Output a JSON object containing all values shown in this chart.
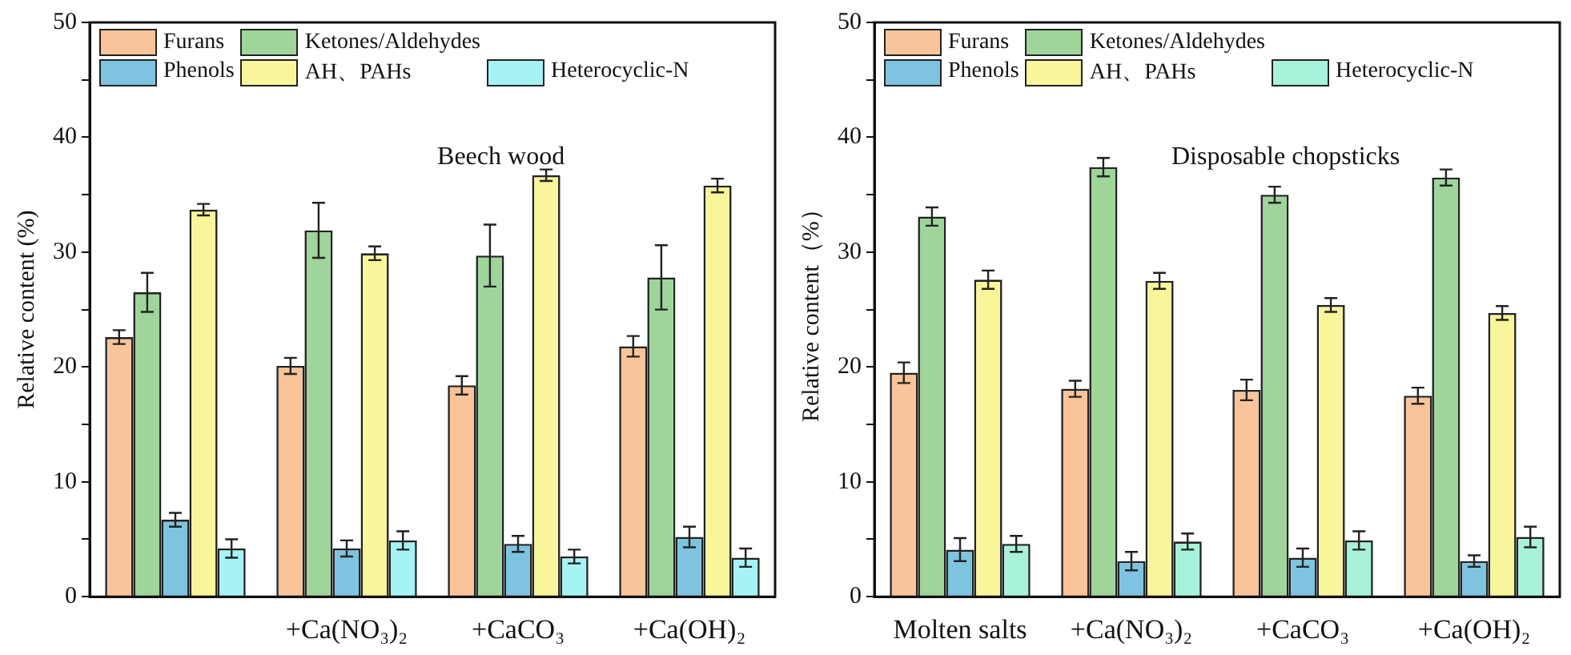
{
  "chart_data": [
    {
      "type": "bar",
      "title": "Beech wood",
      "ylabel": "Relative content (%)",
      "categories": [
        null,
        "+Ca(NO₃)₂",
        "+CaCO₃",
        "+Ca(OH)₂"
      ],
      "ylim": [
        0,
        50
      ],
      "yticks": [
        0,
        {
          "value": 5,
          "label": null
        },
        10,
        {
          "value": 15,
          "label": null
        },
        20,
        {
          "value": 25,
          "label": null
        },
        30,
        {
          "value": 35,
          "label": null
        },
        40,
        {
          "value": 45,
          "label": null
        },
        50
      ],
      "grid": false,
      "legend": "top left",
      "series": [
        {
          "name": "Furans",
          "color": "#f9c49a",
          "values": [
            22.6,
            20.1,
            18.4,
            21.8
          ],
          "errors": [
            0.6,
            0.7,
            0.8,
            0.9
          ]
        },
        {
          "name": "Ketones/Aldehydes",
          "color": "#9fd49b",
          "values": [
            26.5,
            31.9,
            29.7,
            27.8
          ],
          "errors": [
            1.7,
            2.4,
            2.7,
            2.8
          ]
        },
        {
          "name": "Phenols",
          "color": "#7ec4e0",
          "values": [
            6.7,
            4.2,
            4.6,
            5.2
          ],
          "errors": [
            0.6,
            0.7,
            0.7,
            0.9
          ]
        },
        {
          "name": "AH、PAHs",
          "color": "#f9f59a",
          "values": [
            33.7,
            29.9,
            36.7,
            35.8
          ],
          "errors": [
            0.5,
            0.6,
            0.5,
            0.6
          ]
        },
        {
          "name": "Heterocyclic-N",
          "color": "#a5f3f5",
          "values": [
            4.2,
            4.9,
            3.5,
            3.4
          ],
          "errors": [
            0.8,
            0.8,
            0.6,
            0.8
          ]
        }
      ]
    },
    {
      "type": "bar",
      "title": "Disposable chopsticks",
      "ylabel": "Relative content（%）",
      "categories": [
        "Molten salts",
        "+Ca(NO₃)₂",
        "+CaCO₃",
        "+Ca(OH)₂"
      ],
      "ylim": [
        0,
        50
      ],
      "yticks": [
        0,
        {
          "value": 5,
          "label": null
        },
        10,
        {
          "value": 15,
          "label": null
        },
        20,
        {
          "value": 25,
          "label": null
        },
        30,
        {
          "value": 35,
          "label": null
        },
        40,
        {
          "value": 45,
          "label": null
        },
        50
      ],
      "grid": false,
      "legend": "top left",
      "series": [
        {
          "name": "Furans",
          "color": "#f9c49a",
          "values": [
            19.5,
            18.1,
            18.0,
            17.5
          ],
          "errors": [
            0.9,
            0.7,
            0.9,
            0.7
          ]
        },
        {
          "name": "Ketones/Aldehydes",
          "color": "#9fd49b",
          "values": [
            33.1,
            37.4,
            35.0,
            36.5
          ],
          "errors": [
            0.8,
            0.8,
            0.7,
            0.7
          ]
        },
        {
          "name": "Phenols",
          "color": "#7ec4e0",
          "values": [
            4.1,
            3.1,
            3.4,
            3.1
          ],
          "errors": [
            1.0,
            0.8,
            0.8,
            0.5
          ]
        },
        {
          "name": "AH、PAHs",
          "color": "#f9f59a",
          "values": [
            27.6,
            27.5,
            25.4,
            24.7
          ],
          "errors": [
            0.8,
            0.7,
            0.6,
            0.6
          ]
        },
        {
          "name": "Heterocyclic-N",
          "color": "#a8f2dc",
          "values": [
            4.6,
            4.8,
            4.9,
            5.2
          ],
          "errors": [
            0.7,
            0.7,
            0.8,
            0.9
          ]
        }
      ]
    }
  ]
}
